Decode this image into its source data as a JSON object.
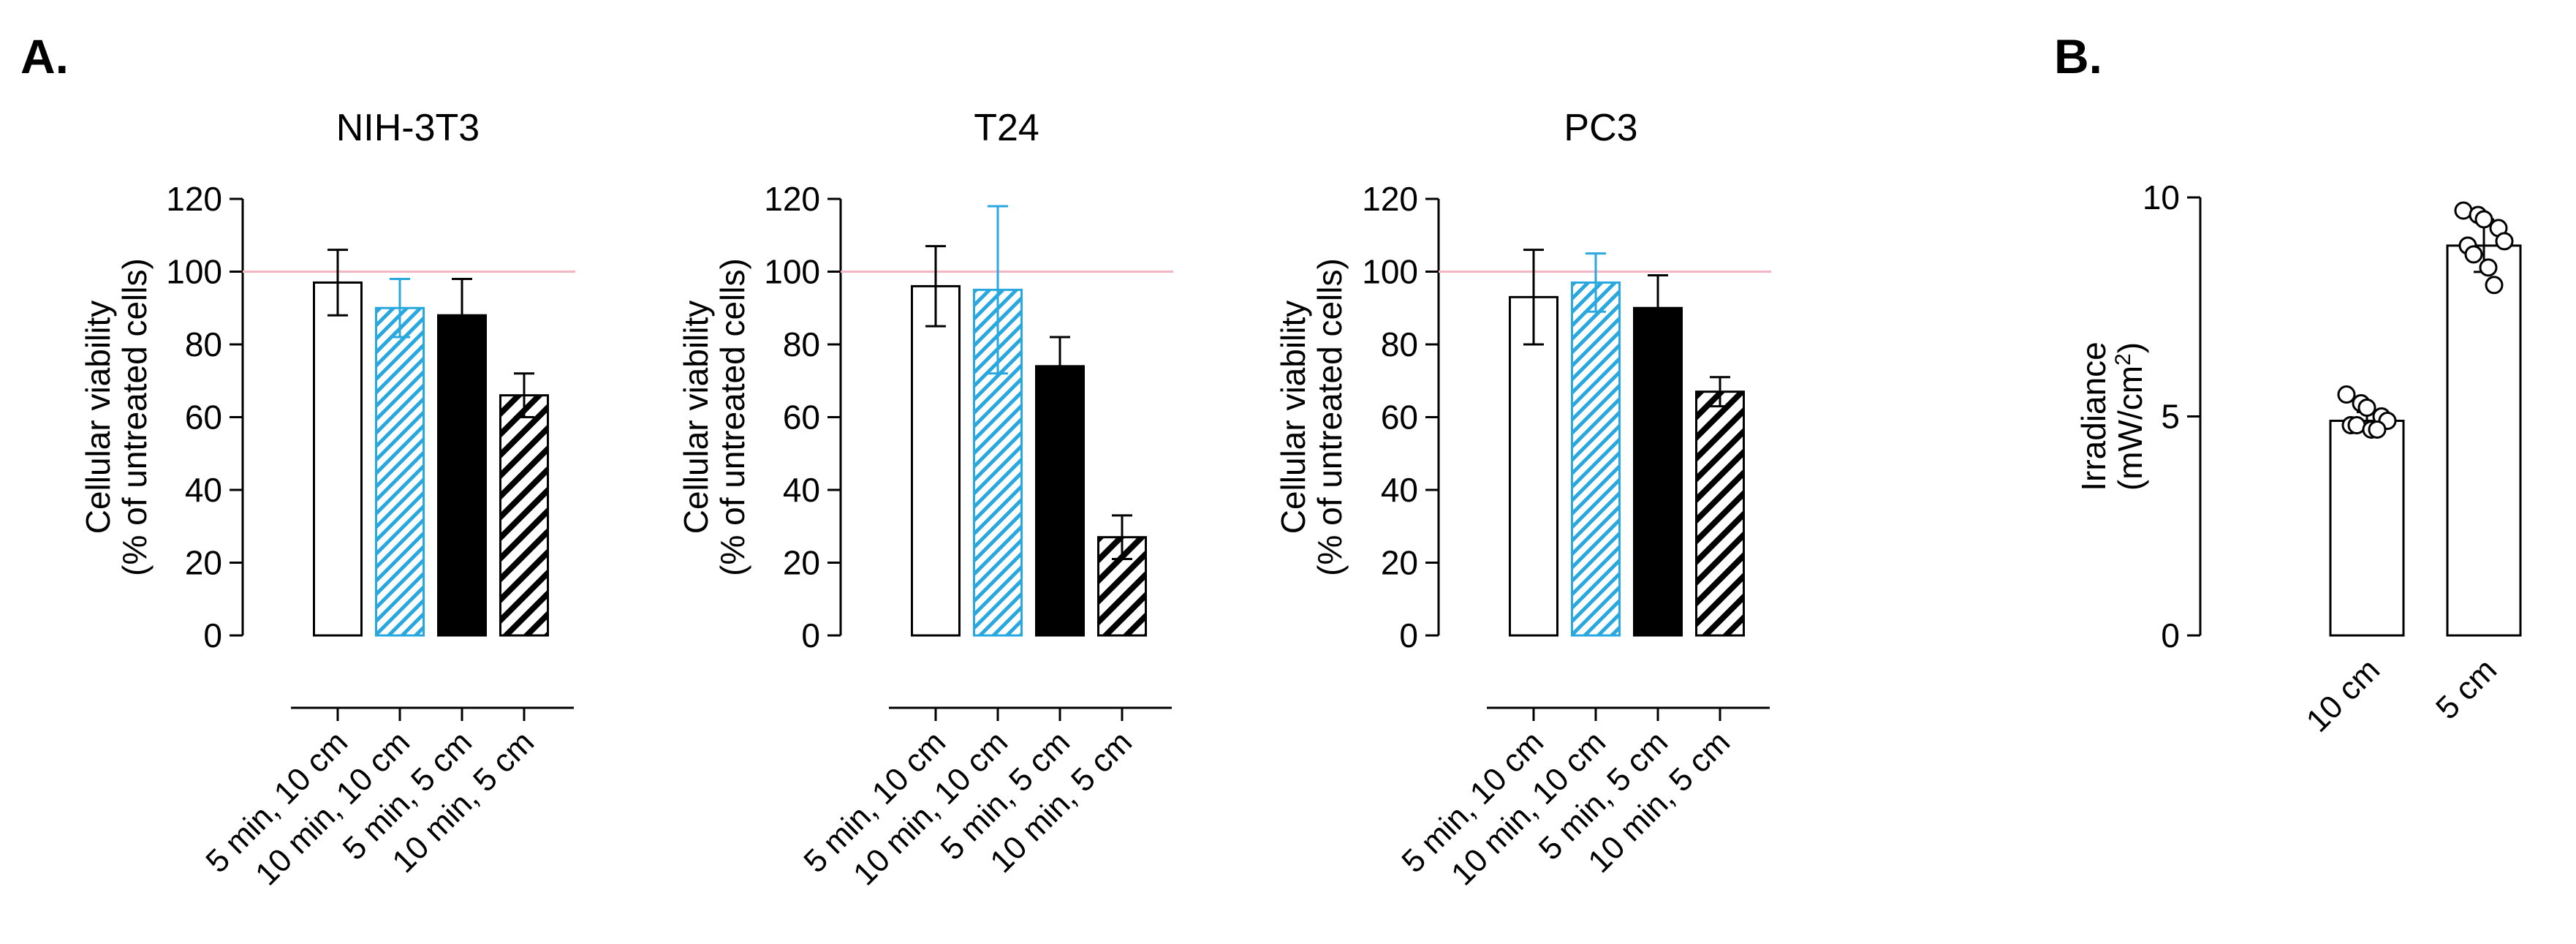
{
  "figure": {
    "panel_labels": [
      "A.",
      "B."
    ]
  },
  "colors": {
    "blue": "#29a8e0",
    "black": "#000000",
    "reference_line": "#f4b6c2"
  },
  "chart_data": [
    {
      "type": "bar",
      "panel": "A.",
      "title": "NIH-3T3",
      "ylabel": [
        "Cellular viability",
        "(% of untreated cells)"
      ],
      "ylim": [
        0,
        120
      ],
      "yticks": [
        0,
        20,
        40,
        60,
        80,
        100,
        120
      ],
      "reference_line": 100,
      "categories": [
        "5 min, 10 cm",
        "10 min, 10 cm",
        "5 min, 5 cm",
        "10 min, 5 cm"
      ],
      "styles": [
        "open",
        "blue-hatch",
        "solid",
        "black-hatch"
      ],
      "values": [
        97,
        90,
        88,
        66
      ],
      "errors": [
        9,
        8,
        10,
        6
      ]
    },
    {
      "type": "bar",
      "panel": "A.",
      "title": "T24",
      "ylabel": [
        "Cellular viability",
        "(% of untreated cells)"
      ],
      "ylim": [
        0,
        120
      ],
      "yticks": [
        0,
        20,
        40,
        60,
        80,
        100,
        120
      ],
      "reference_line": 100,
      "categories": [
        "5 min, 10 cm",
        "10 min, 10 cm",
        "5 min, 5 cm",
        "10 min, 5 cm"
      ],
      "styles": [
        "open",
        "blue-hatch",
        "solid",
        "black-hatch"
      ],
      "values": [
        96,
        95,
        74,
        27
      ],
      "errors": [
        11,
        23,
        8,
        6
      ]
    },
    {
      "type": "bar",
      "panel": "A.",
      "title": "PC3",
      "ylabel": [
        "Cellular viability",
        "(% of untreated cells)"
      ],
      "ylim": [
        0,
        120
      ],
      "yticks": [
        0,
        20,
        40,
        60,
        80,
        100,
        120
      ],
      "reference_line": 100,
      "categories": [
        "5 min, 10 cm",
        "10 min, 10 cm",
        "5 min, 5 cm",
        "10 min, 5 cm"
      ],
      "styles": [
        "open",
        "blue-hatch",
        "solid",
        "black-hatch"
      ],
      "values": [
        93,
        97,
        90,
        67
      ],
      "errors": [
        13,
        8,
        9,
        4
      ]
    },
    {
      "type": "bar",
      "panel": "B.",
      "title": "",
      "ylabel": [
        "Irradiance",
        "(mW/cm²)"
      ],
      "ylim": [
        0,
        10
      ],
      "yticks": [
        0,
        5,
        10
      ],
      "categories": [
        "10 cm",
        "5 cm"
      ],
      "styles": [
        "open",
        "open"
      ],
      "values": [
        4.9,
        8.9
      ],
      "errors": [
        0.2,
        0.6
      ],
      "points": [
        [
          5.5,
          5.3,
          5.2,
          5.0,
          4.9,
          4.8,
          4.8,
          4.7,
          4.7
        ],
        [
          9.7,
          9.6,
          9.5,
          9.3,
          9.0,
          8.9,
          8.7,
          8.4,
          8.0
        ]
      ]
    }
  ]
}
